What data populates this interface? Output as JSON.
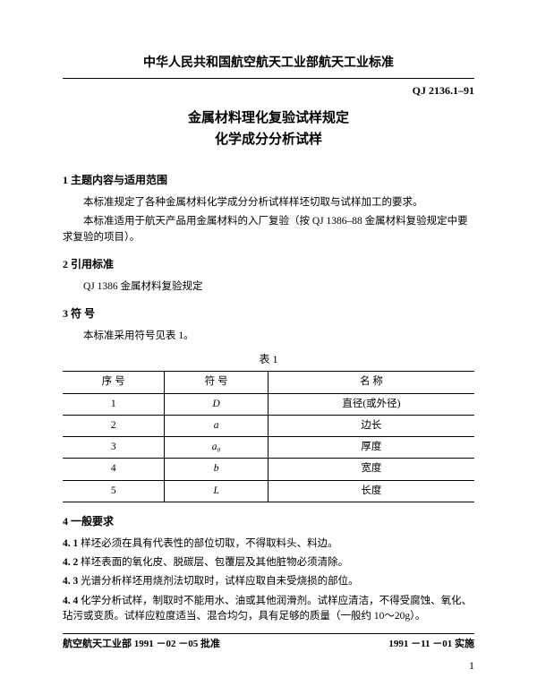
{
  "header": {
    "org": "中华人民共和国航空航天工业部航天工业标准",
    "code": "QJ 2136.1–91",
    "title1": "金属材料理化复验试样规定",
    "title2": "化学成分分析试样"
  },
  "sec1": {
    "head": "1  主题内容与适用范围",
    "p1": "本标准规定了各种金属材料化学成分分析试样样坯切取与试样加工的要求。",
    "p2": "本标准适用于航天产品用金属材料的入厂复验（按 QJ 1386–88 金属材料复验规定中要求复验的项目）。"
  },
  "sec2": {
    "head": "2  引用标准",
    "p1": "QJ 1386   金属材料复验规定"
  },
  "sec3": {
    "head": "3  符 号",
    "p1": "本标准采用符号见表 1。",
    "caption": "表 1",
    "cols": [
      "序  号",
      "符  号",
      "名    称"
    ],
    "rows": [
      [
        "1",
        "D",
        "直径(或外径)"
      ],
      [
        "2",
        "a",
        "边长"
      ],
      [
        "3",
        "a₀",
        "厚度"
      ],
      [
        "4",
        "b",
        "宽度"
      ],
      [
        "5",
        "L",
        "长度"
      ]
    ]
  },
  "sec4": {
    "head": "4  一般要求",
    "i1l": "4. 1",
    "i1t": "  样坯必须在具有代表性的部位切取，不得取料头、料边。",
    "i2l": "4. 2",
    "i2t": "  样坯表面的氧化皮、脱碳层、包覆层及其他脏物必须清除。",
    "i3l": "4. 3",
    "i3t": "  光谱分析样坯用烧剂法切取时，试样应取自未受烧损的部位。",
    "i4l": "4. 4",
    "i4t": "  化学分析试样，制取时不能用水、油或其他润滑剂。试样应清洁，不得受腐蚀、氧化、玷污或变质。试样应粒度适当、混合均匀，具有足够的质量（一般约 10～20g）。"
  },
  "footer": {
    "left": "航空航天工业部 1991 －02 －05 批准",
    "right": "1991 －11 －01 实施",
    "page": "1"
  }
}
